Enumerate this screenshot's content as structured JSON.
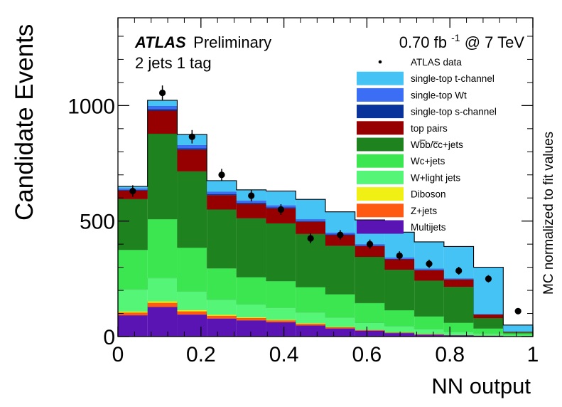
{
  "chart_data": {
    "type": "bar",
    "stacked": true,
    "histogram": true,
    "title": "",
    "annotations": {
      "experiment": "ATLAS",
      "status": "Preliminary",
      "selection": "2 jets 1 tag",
      "lumi_prefix": "0.70 fb",
      "lumi_exp": "-1",
      "lumi_suffix": " @ 7 TeV"
    },
    "xlabel": "NN output",
    "ylabel": "Candidate Events",
    "right_label": "MC normalized to fit values",
    "xlim": [
      0,
      1
    ],
    "ylim": [
      0,
      1380
    ],
    "xticks": [
      0,
      0.2,
      0.4,
      0.6,
      0.8,
      1
    ],
    "xtick_labels": [
      "0",
      "0.2",
      "0.4",
      "0.6",
      "0.8",
      "1"
    ],
    "yticks": [
      0,
      500,
      1000
    ],
    "ytick_labels": [
      "0",
      "500",
      "1000"
    ],
    "bin_edges": [
      0,
      0.0714,
      0.1429,
      0.2143,
      0.2857,
      0.3571,
      0.4286,
      0.5,
      0.5714,
      0.6429,
      0.7143,
      0.7857,
      0.8571,
      0.9286,
      1.0
    ],
    "series": [
      {
        "name": "Multijets",
        "color": "#5a14b4",
        "values": [
          92,
          128,
          95,
          78,
          70,
          62,
          48,
          35,
          25,
          15,
          8,
          5,
          3,
          1
        ]
      },
      {
        "name": "Z+jets",
        "color": "#ff5a14",
        "values": [
          12,
          18,
          14,
          12,
          10,
          8,
          7,
          5,
          3,
          2,
          2,
          1,
          1,
          0
        ]
      },
      {
        "name": "Diboson",
        "color": "#f0f014",
        "values": [
          5,
          7,
          6,
          5,
          4,
          3,
          3,
          2,
          1,
          1,
          1,
          0,
          0,
          0
        ]
      },
      {
        "name": "W+light jets",
        "color": "#55f578",
        "values": [
          95,
          100,
          80,
          65,
          56,
          51,
          46,
          40,
          31,
          27,
          21,
          14,
          9,
          5
        ]
      },
      {
        "name": "Wc+jets",
        "color": "#3ce650",
        "values": [
          171,
          255,
          190,
          135,
          117,
          116,
          110,
          101,
          85,
          69,
          55,
          40,
          22,
          8
        ]
      },
      {
        "name": "Wb̅b/c̅c+jets",
        "color": "#1e821e",
        "values": [
          220,
          370,
          330,
          255,
          255,
          250,
          230,
          210,
          200,
          175,
          155,
          155,
          45,
          5
        ]
      },
      {
        "name": "top pairs",
        "color": "#960000",
        "values": [
          37,
          100,
          94,
          62,
          62,
          65,
          53,
          46,
          47,
          45,
          45,
          32,
          15,
          2
        ]
      },
      {
        "name": "single-top s-channel",
        "color": "#0a329b",
        "values": [
          3,
          6,
          6,
          5,
          5,
          4,
          3,
          3,
          2,
          2,
          2,
          1,
          1,
          0
        ]
      },
      {
        "name": "single-top Wt",
        "color": "#3c6ef5",
        "values": [
          6,
          14,
          14,
          10,
          10,
          9,
          8,
          8,
          6,
          6,
          5,
          4,
          2,
          1
        ]
      },
      {
        "name": "single-top t-channel",
        "color": "#46c3f5",
        "values": [
          9,
          25,
          46,
          48,
          46,
          62,
          86,
          90,
          105,
          110,
          116,
          138,
          202,
          28
        ]
      }
    ],
    "data_points": {
      "name": "ATLAS data",
      "values": [
        630,
        1055,
        865,
        700,
        610,
        550,
        425,
        440,
        400,
        350,
        315,
        285,
        250,
        110
      ],
      "errors": [
        25,
        32,
        29,
        26,
        25,
        23,
        21,
        21,
        20,
        19,
        18,
        17,
        16,
        11
      ]
    },
    "legend": {
      "position": "top-right",
      "entries": [
        "ATLAS data",
        "single-top t-channel",
        "single-top Wt",
        "single-top s-channel",
        "top pairs",
        "Wb̅b/c̅c+jets",
        "Wc+jets",
        "W+light jets",
        "Diboson",
        "Z+jets",
        "Multijets"
      ]
    }
  }
}
